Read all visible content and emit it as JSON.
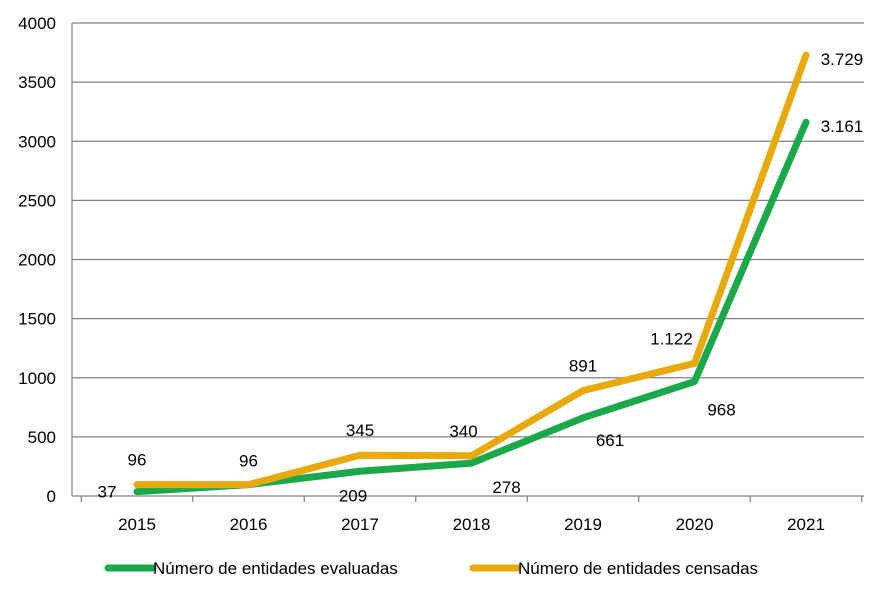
{
  "chart_data": {
    "type": "line",
    "title": "",
    "xlabel": "",
    "ylabel": "",
    "categories": [
      "2015",
      "2016",
      "2017",
      "2018",
      "2019",
      "2020",
      "2021"
    ],
    "ylim": [
      0,
      4000
    ],
    "yticks": [
      0,
      500,
      1000,
      1500,
      2000,
      2500,
      3000,
      3500,
      4000
    ],
    "ytick_labels": [
      "0",
      "500",
      "1000",
      "1500",
      "2000",
      "2500",
      "3000",
      "3500",
      "4000"
    ],
    "grid": true,
    "legend_position": "bottom",
    "series": [
      {
        "name": "Número de entidades evaluadas",
        "color": "#1aa84a",
        "values": [
          37,
          96,
          209,
          278,
          661,
          968,
          3161
        ],
        "labels": [
          "37",
          "96",
          "209",
          "278",
          "661",
          "968",
          "3.161"
        ]
      },
      {
        "name": "Número de entidades censadas",
        "color": "#e8a90c",
        "values": [
          96,
          96,
          345,
          340,
          891,
          1122,
          3729
        ],
        "labels": [
          "96",
          "",
          "345",
          "340",
          "891",
          "1.122",
          "3.729"
        ]
      }
    ]
  }
}
